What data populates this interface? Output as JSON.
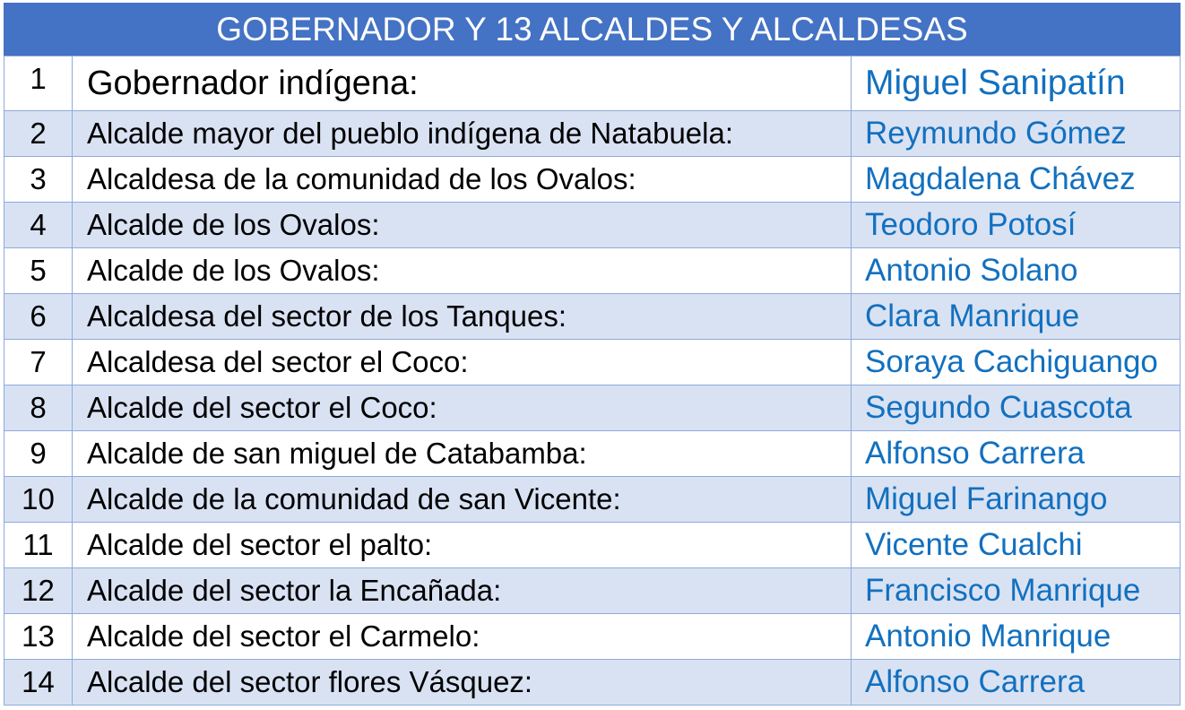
{
  "title": "GOBERNADOR Y 13 ALCALDES Y ALCALDESAS",
  "colors": {
    "header_bg": "#4472C4",
    "band_bg": "#D9E2F3",
    "border": "#8EAADB",
    "name_text": "#1270BF"
  },
  "rows": [
    {
      "num": "1",
      "role": "Gobernador indígena:",
      "name": "Miguel Sanipatín"
    },
    {
      "num": "2",
      "role": "Alcalde mayor del pueblo indígena de Natabuela:",
      "name": "Reymundo Gómez"
    },
    {
      "num": "3",
      "role": "Alcaldesa de la comunidad de los Ovalos:",
      "name": "Magdalena Chávez"
    },
    {
      "num": "4",
      "role": "Alcalde de los Ovalos:",
      "name": "Teodoro Potosí"
    },
    {
      "num": "5",
      "role": "Alcalde de los Ovalos:",
      "name": "Antonio Solano"
    },
    {
      "num": "6",
      "role": "Alcaldesa del sector de los Tanques:",
      "name": "Clara Manrique"
    },
    {
      "num": "7",
      "role": "Alcaldesa del sector el Coco:",
      "name": "Soraya Cachiguango"
    },
    {
      "num": "8",
      "role": "Alcalde del sector el Coco:",
      "name": "Segundo Cuascota"
    },
    {
      "num": "9",
      "role": "Alcalde de san miguel de Catabamba:",
      "name": "Alfonso Carrera"
    },
    {
      "num": "10",
      "role": "Alcalde de la comunidad de san Vicente:",
      "name": "Miguel Farinango"
    },
    {
      "num": "11",
      "role": "Alcalde del sector el palto:",
      "name": "Vicente Cualchi"
    },
    {
      "num": "12",
      "role": "Alcalde del sector la Encañada:",
      "name": "Francisco Manrique"
    },
    {
      "num": "13",
      "role": "Alcalde del sector el Carmelo:",
      "name": "Antonio Manrique"
    },
    {
      "num": "14",
      "role": "Alcalde del sector flores Vásquez:",
      "name": "Alfonso Carrera"
    }
  ]
}
